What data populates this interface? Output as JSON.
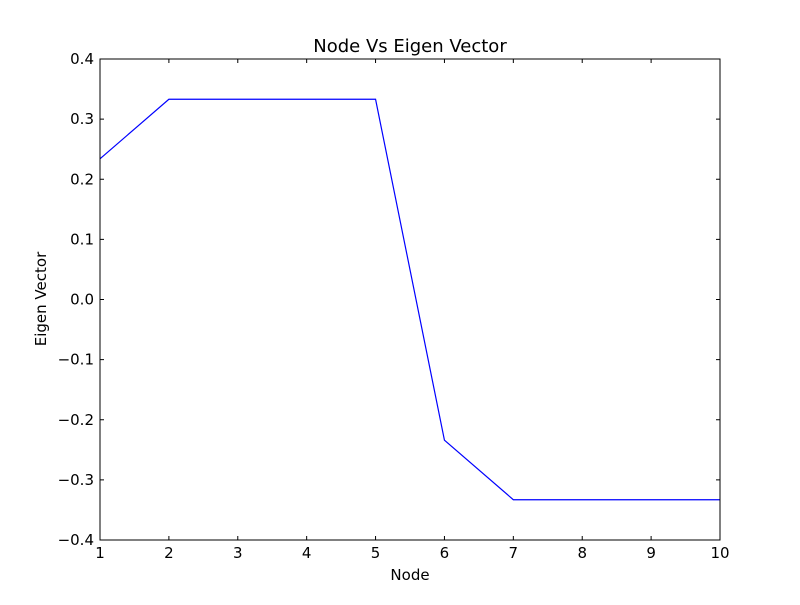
{
  "chart_data": {
    "type": "line",
    "title": "Node Vs Eigen Vector",
    "xlabel": "Node",
    "ylabel": "Eigen Vector",
    "xlim": [
      1,
      10
    ],
    "ylim": [
      -0.4,
      0.4
    ],
    "x_ticks": [
      1,
      2,
      3,
      4,
      5,
      6,
      7,
      8,
      9,
      10
    ],
    "x_tick_labels": [
      "1",
      "2",
      "3",
      "4",
      "5",
      "6",
      "7",
      "8",
      "9",
      "10"
    ],
    "y_ticks": [
      -0.4,
      -0.3,
      -0.2,
      -0.1,
      0.0,
      0.1,
      0.2,
      0.3,
      0.4
    ],
    "y_tick_labels": [
      "−0.4",
      "−0.3",
      "−0.2",
      "−0.1",
      "0.0",
      "0.1",
      "0.2",
      "0.3",
      "0.4"
    ],
    "grid": false,
    "series": [
      {
        "color": "#0000ff",
        "x": [
          1,
          2,
          3,
          4,
          5,
          6,
          7,
          8,
          9,
          10
        ],
        "y": [
          0.234,
          0.333,
          0.333,
          0.333,
          0.333,
          -0.234,
          -0.333,
          -0.333,
          -0.333,
          -0.333
        ]
      }
    ]
  }
}
